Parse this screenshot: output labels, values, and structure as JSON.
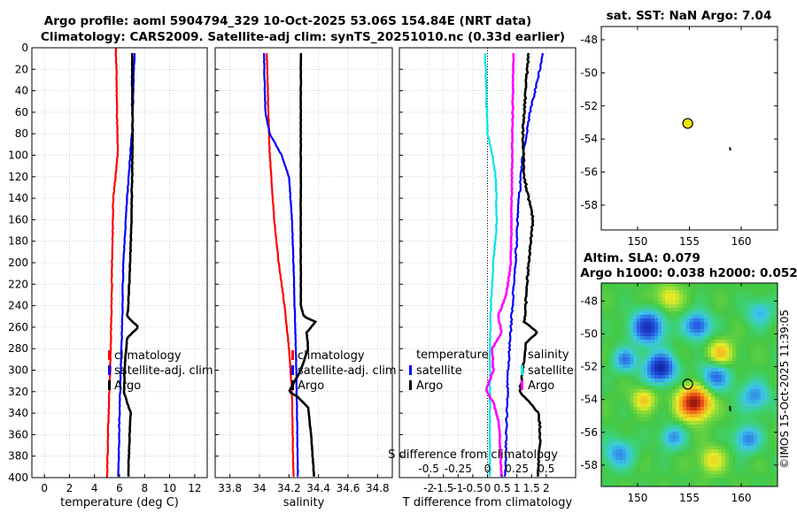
{
  "title": {
    "line1": "Argo profile: aoml 5904794_329 10-Oct-2025 53.06S 154.84E (NRT data)",
    "line2": "Climatology: CARS2009. Satellite-adj clim: synTS_20251010.nc (0.33d earlier)"
  },
  "watermark": "©IMOS 15-Oct-2025 11:39:05",
  "colors": {
    "climatology": "#ff0000",
    "satellite": "#0000ff",
    "argo": "#000000",
    "cyan": "#00e5e5",
    "magenta": "#ff00ff",
    "map_marker": "#f2e200"
  },
  "chart_data": [
    {
      "type": "line",
      "id": "temperature",
      "xlabel": "temperature (deg C)",
      "ylabel": "",
      "xlim": [
        -1,
        13
      ],
      "ylim": [
        400,
        0
      ],
      "xticks": [
        0,
        2,
        4,
        6,
        8,
        10,
        12
      ],
      "yticks": [
        0,
        20,
        40,
        60,
        80,
        100,
        120,
        140,
        160,
        180,
        200,
        220,
        240,
        260,
        280,
        300,
        320,
        340,
        360,
        380,
        400
      ],
      "grid": true,
      "legend": [
        "climatology",
        "satellite-adj. clim",
        "Argo"
      ],
      "series": [
        {
          "name": "climatology",
          "color": "#ff0000",
          "depth": [
            0,
            20,
            60,
            100,
            140,
            200,
            250,
            300,
            350,
            400
          ],
          "values": [
            5.7,
            5.75,
            5.8,
            5.85,
            5.5,
            5.4,
            5.35,
            5.25,
            5.1,
            5.0
          ]
        },
        {
          "name": "satellite-adj. clim",
          "color": "#0000ff",
          "depth": [
            5,
            20,
            60,
            80,
            100,
            140,
            200,
            260,
            300,
            340,
            400
          ],
          "values": [
            7.2,
            7.15,
            7.05,
            7.0,
            6.85,
            6.6,
            6.3,
            6.2,
            6.1,
            6.0,
            5.9
          ]
        },
        {
          "name": "Argo",
          "color": "#000000",
          "depth": [
            5,
            40,
            80,
            120,
            160,
            180,
            200,
            240,
            250,
            260,
            270,
            300,
            320,
            330,
            340,
            360,
            400
          ],
          "values": [
            7.0,
            7.0,
            7.05,
            7.0,
            6.95,
            6.9,
            6.85,
            6.7,
            6.6,
            7.5,
            6.6,
            6.4,
            6.35,
            6.6,
            6.9,
            6.8,
            6.7
          ]
        }
      ]
    },
    {
      "type": "line",
      "id": "salinity",
      "xlabel": "salinity",
      "xlim": [
        33.7,
        34.9
      ],
      "ylim": [
        400,
        0
      ],
      "xticks": [
        33.8,
        34,
        34.2,
        34.4,
        34.6,
        34.8
      ],
      "xticklabels": [
        "33.8",
        "34",
        "34.2",
        "34.4",
        "34.6",
        "34.8"
      ],
      "grid": true,
      "legend": [
        "climatology",
        "satellite-adj. clim",
        "Argo"
      ],
      "series": [
        {
          "name": "climatology",
          "color": "#ff0000",
          "depth": [
            5,
            60,
            100,
            160,
            200,
            240,
            280,
            320,
            400
          ],
          "values": [
            34.05,
            34.06,
            34.07,
            34.1,
            34.13,
            34.17,
            34.2,
            34.22,
            34.23
          ]
        },
        {
          "name": "satellite-adj. clim",
          "color": "#0000ff",
          "depth": [
            5,
            60,
            80,
            100,
            120,
            160,
            200,
            250,
            300,
            400
          ],
          "values": [
            34.03,
            34.04,
            34.07,
            34.15,
            34.2,
            34.22,
            34.23,
            34.24,
            34.25,
            34.26
          ]
        },
        {
          "name": "Argo",
          "color": "#000000",
          "depth": [
            5,
            100,
            200,
            240,
            250,
            255,
            265,
            280,
            300,
            315,
            320,
            325,
            335,
            360,
            400
          ],
          "values": [
            34.28,
            34.28,
            34.28,
            34.28,
            34.3,
            34.38,
            34.32,
            34.33,
            34.28,
            34.22,
            34.2,
            34.26,
            34.33,
            34.35,
            34.37
          ]
        }
      ]
    },
    {
      "type": "line",
      "id": "differences",
      "xlabel": "T difference from climatology",
      "xlabel2": "S difference from climatology",
      "xlim": [
        -3,
        3
      ],
      "ylim": [
        400,
        0
      ],
      "xticks": [
        -2,
        -1.5,
        -1,
        -0.5,
        0,
        0.5,
        1,
        1.5,
        2
      ],
      "xticklabels": [
        "-2",
        "-1.5",
        "-1",
        "-0.5",
        "0",
        "0.5",
        "1",
        "1.5",
        "2"
      ],
      "s_ticks": [
        -0.5,
        -0.25,
        0,
        0.25,
        0.5
      ],
      "s_ticklabels": [
        "-0.5",
        "-0.25",
        "0",
        "0.25",
        "0.5"
      ],
      "grid": true,
      "legend_temperature": {
        "title": "temperature",
        "items": [
          "satellite",
          "Argo"
        ]
      },
      "legend_salinity": {
        "title": "salinity",
        "items": [
          "satellite",
          "Argo"
        ]
      },
      "series": [
        {
          "name": "T satellite",
          "color": "#0000ff",
          "depth": [
            5,
            60,
            100,
            150,
            200,
            260,
            300,
            350,
            400
          ],
          "values": [
            1.9,
            1.45,
            1.2,
            1.05,
            0.95,
            0.8,
            0.7,
            0.65,
            0.6
          ]
        },
        {
          "name": "T Argo",
          "color": "#000000",
          "depth": [
            5,
            40,
            80,
            120,
            160,
            200,
            240,
            255,
            265,
            275,
            300,
            320,
            340,
            360,
            400
          ],
          "values": [
            1.4,
            1.3,
            1.2,
            1.25,
            1.55,
            1.4,
            1.3,
            1.25,
            1.7,
            1.3,
            1.2,
            1.1,
            1.75,
            1.8,
            1.7
          ]
        },
        {
          "name": "S satellite",
          "color": "#00e5e5",
          "depth": [
            5,
            40,
            80,
            100,
            120,
            160,
            200,
            240,
            280,
            320,
            400
          ],
          "values": [
            -0.02,
            -0.01,
            0.0,
            0.04,
            0.07,
            0.08,
            0.05,
            0.03,
            0.02,
            0.02,
            0.02
          ]
        },
        {
          "name": "S Argo",
          "color": "#ff00ff",
          "depth": [
            5,
            100,
            200,
            230,
            250,
            265,
            280,
            300,
            315,
            320,
            330,
            350,
            400
          ],
          "values": [
            0.22,
            0.21,
            0.2,
            0.16,
            0.09,
            0.12,
            0.04,
            0.05,
            0.0,
            -0.01,
            0.05,
            0.1,
            0.12
          ]
        }
      ]
    },
    {
      "type": "scatter",
      "id": "sst-map",
      "title": "sat. SST: NaN Argo: 7.04",
      "xlim": [
        146.5,
        163.5
      ],
      "ylim": [
        -59.5,
        -47.2
      ],
      "xticks": [
        150,
        155,
        160
      ],
      "yticks": [
        -48,
        -50,
        -52,
        -54,
        -56,
        -58
      ],
      "points": [
        {
          "lon": 154.84,
          "lat": -53.06,
          "label": "Argo float"
        }
      ],
      "track": [
        {
          "lon": 158.9,
          "lat": -54.5
        },
        {
          "lon": 158.95,
          "lat": -54.7
        }
      ]
    },
    {
      "type": "heatmap",
      "id": "sla-map",
      "title": "Altim. SLA: 0.079",
      "subtitle": "Argo h1000: 0.038 h2000: 0.052",
      "xlim": [
        146.5,
        163.5
      ],
      "ylim": [
        -59.3,
        -46.9
      ],
      "xticks": [
        150,
        155,
        160
      ],
      "yticks": [
        -48,
        -50,
        -52,
        -54,
        -56,
        -58
      ],
      "points": [
        {
          "lon": 154.84,
          "lat": -53.06,
          "label": "Argo float"
        }
      ],
      "track": [
        {
          "lon": 158.9,
          "lat": -54.4
        },
        {
          "lon": 158.95,
          "lat": -54.7
        }
      ],
      "anomalies": [
        {
          "lon": 155.5,
          "lat": -54.2,
          "amp": 1.0,
          "width": 1.1
        },
        {
          "lon": 151.0,
          "lat": -49.6,
          "amp": -0.8,
          "width": 1.1
        },
        {
          "lon": 155.8,
          "lat": -49.5,
          "amp": -0.65,
          "width": 0.9
        },
        {
          "lon": 152.2,
          "lat": -52.1,
          "amp": -0.9,
          "width": 1.0
        },
        {
          "lon": 157.5,
          "lat": -52.6,
          "amp": -0.55,
          "width": 1.0
        },
        {
          "lon": 148.8,
          "lat": -51.6,
          "amp": -0.5,
          "width": 0.8
        },
        {
          "lon": 150.6,
          "lat": -54.0,
          "amp": 0.4,
          "width": 0.8
        },
        {
          "lon": 153.4,
          "lat": -56.3,
          "amp": -0.45,
          "width": 0.8
        },
        {
          "lon": 158.0,
          "lat": -51.2,
          "amp": 0.45,
          "width": 0.9
        },
        {
          "lon": 161.3,
          "lat": -53.8,
          "amp": -0.45,
          "width": 1.0
        },
        {
          "lon": 160.6,
          "lat": -56.4,
          "amp": -0.5,
          "width": 0.9
        },
        {
          "lon": 148.2,
          "lat": -57.3,
          "amp": -0.45,
          "width": 1.0
        },
        {
          "lon": 157.2,
          "lat": -57.7,
          "amp": 0.35,
          "width": 0.9
        },
        {
          "lon": 161.8,
          "lat": -48.7,
          "amp": -0.35,
          "width": 0.9
        },
        {
          "lon": 153.0,
          "lat": -47.8,
          "amp": 0.35,
          "width": 0.9
        }
      ]
    }
  ]
}
